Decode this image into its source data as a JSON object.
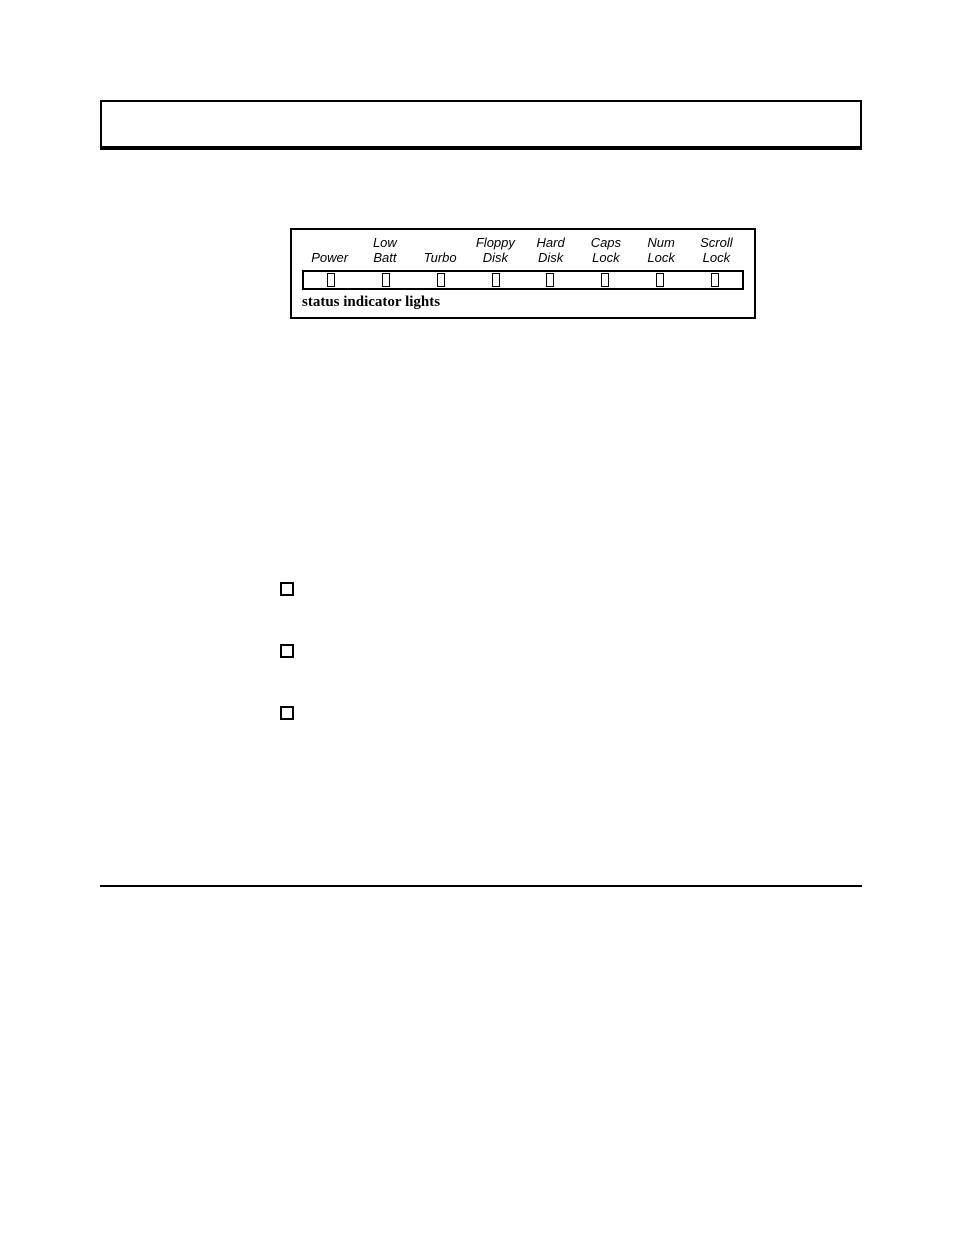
{
  "figure": {
    "caption": "status indicator lights",
    "indicators": [
      {
        "line1": "",
        "line2": "Power"
      },
      {
        "line1": "Low",
        "line2": "Batt"
      },
      {
        "line1": "",
        "line2": "Turbo"
      },
      {
        "line1": "Floppy",
        "line2": "Disk"
      },
      {
        "line1": "Hard",
        "line2": "Disk"
      },
      {
        "line1": "Caps",
        "line2": "Lock"
      },
      {
        "line1": "Num",
        "line2": "Lock"
      },
      {
        "line1": "Scroll",
        "line2": "Lock"
      }
    ]
  },
  "bullets": [
    {
      "label": ""
    },
    {
      "label": ""
    },
    {
      "label": ""
    }
  ]
}
